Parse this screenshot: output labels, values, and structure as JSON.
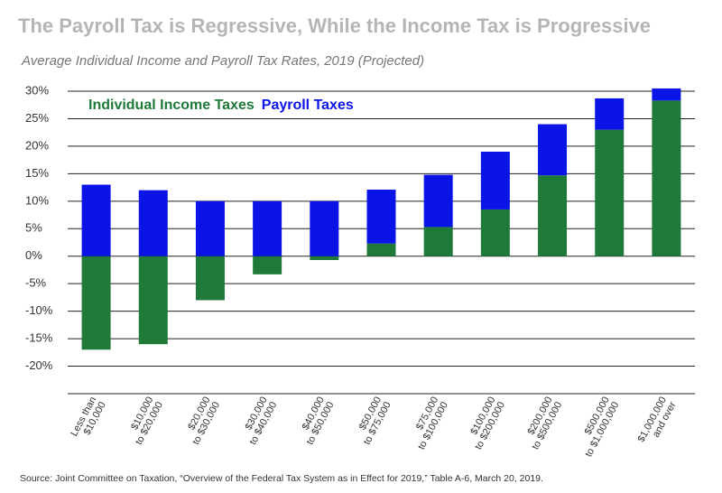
{
  "chart_data": {
    "type": "stacked_bar",
    "title": "The Payroll Tax is Regressive, While the Income Tax is Progressive",
    "subtitle": "Average Individual Income and Payroll Tax Rates, 2019 (Projected)",
    "source": "Source: Joint Committee on Taxation, “Overview of the Federal Tax System as in Effect for 2019,” Table A-6, March 20, 2019.",
    "categories": [
      [
        "Less than",
        "$10,000"
      ],
      [
        "$10,000",
        "to $20,000"
      ],
      [
        "$20,000",
        "to $30,000"
      ],
      [
        "$30,000",
        "to $40,000"
      ],
      [
        "$40,000",
        "to $50,000"
      ],
      [
        "$50,000",
        "to $75,000"
      ],
      [
        "$75,000",
        "to $100,000"
      ],
      [
        "$100,000",
        "to $200,000"
      ],
      [
        "$200,000",
        "to $500,000"
      ],
      [
        "$500,000",
        "to $1,000,000"
      ],
      [
        "$1,000,000",
        "and over"
      ]
    ],
    "series": [
      {
        "name": "Individual Income Taxes",
        "color": "#1f7a3a",
        "values": [
          -17,
          -16,
          -8,
          -3.3,
          -0.7,
          2.3,
          5.3,
          8.5,
          14.7,
          23,
          28.3
        ]
      },
      {
        "name": "Payroll Taxes",
        "color": "#0a14e6",
        "values": [
          13,
          12,
          10,
          10,
          10,
          9.8,
          9.5,
          10.5,
          9.3,
          5.7,
          2.2
        ]
      }
    ],
    "ylim": [
      -25,
      30
    ],
    "yticks": [
      {
        "value": 30,
        "label": "30%"
      },
      {
        "value": 25,
        "label": "25%"
      },
      {
        "value": 20,
        "label": "20%"
      },
      {
        "value": 15,
        "label": "15%"
      },
      {
        "value": 10,
        "label": "10%"
      },
      {
        "value": 5,
        "label": "5%"
      },
      {
        "value": 0,
        "label": "0%"
      },
      {
        "value": -5,
        "label": "-5%"
      },
      {
        "value": -10,
        "label": "-10%"
      },
      {
        "value": -15,
        "label": "-15%"
      },
      {
        "value": -20,
        "label": "-20%"
      }
    ],
    "grid": true
  }
}
